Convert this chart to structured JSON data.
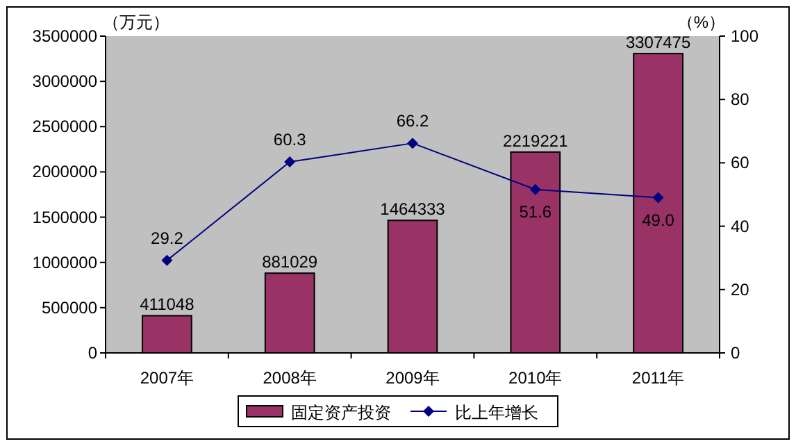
{
  "chart_data": {
    "type": "bar",
    "categories": [
      "2007年",
      "2008年",
      "2009年",
      "2010年",
      "2011年"
    ],
    "series": [
      {
        "name": "固定资产投资",
        "color": "#993366",
        "values": [
          411048,
          881029,
          1464333,
          2219221,
          3307475
        ]
      },
      {
        "name": "比上年增长",
        "type": "line",
        "axis": "y2",
        "color": "#000080",
        "marker": "diamond",
        "values": [
          29.2,
          60.3,
          66.2,
          51.6,
          49.0
        ],
        "value_labels": [
          "29.2",
          "60.3",
          "66.2",
          "51.6",
          "49.0"
        ]
      }
    ],
    "ylabel": "（万元）",
    "y2label": "（%）",
    "ylim": [
      0,
      3500000
    ],
    "yticks": [
      0,
      500000,
      1000000,
      1500000,
      2000000,
      2500000,
      3000000,
      3500000
    ],
    "y2lim": [
      0,
      100
    ],
    "y2ticks": [
      0,
      20,
      40,
      60,
      80,
      100
    ],
    "data_labels": true,
    "legend": "bottom",
    "grid": false
  }
}
